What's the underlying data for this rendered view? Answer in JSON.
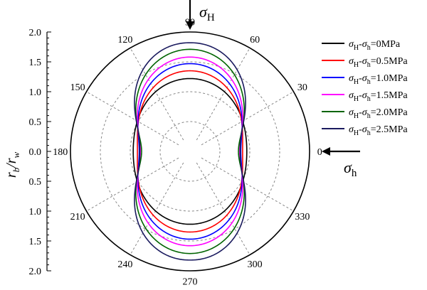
{
  "chart_data": {
    "type": "polar-line",
    "radial_axis": {
      "label_main": "r",
      "label_sub1": "b",
      "label_sep": "/r",
      "label_sub2": "w",
      "range": [
        0,
        2.0
      ],
      "ticks": [
        "2.0",
        "1.5",
        "1.0",
        "0.5",
        "0.0",
        "0.5",
        "1.0",
        "1.5",
        "2.0"
      ],
      "tick_values": [
        2.0,
        1.5,
        1.0,
        0.5,
        0.0,
        0.5,
        1.0,
        1.5,
        2.0
      ],
      "minor_step": 0.1
    },
    "angular_axis": {
      "ticks": [
        "0",
        "30",
        "60",
        "90",
        "120",
        "150",
        "180",
        "210",
        "240",
        "270",
        "300",
        "330"
      ],
      "tick_values_deg": [
        0,
        30,
        60,
        90,
        120,
        150,
        180,
        210,
        240,
        270,
        300,
        330
      ]
    },
    "grid_radii": [
      0.5,
      1.0,
      1.5
    ],
    "grid": true,
    "legend_position": "right",
    "annotations": {
      "sigma_H": {
        "symbol": "σ",
        "sub": "H"
      },
      "sigma_h": {
        "symbol": "σ",
        "sub": "h"
      }
    },
    "series": [
      {
        "name": "σH-σh=0MPa",
        "name_parts": [
          "σ",
          "H",
          "-σ",
          "h",
          "=0MPa"
        ],
        "color": "#000000",
        "peak_90": 1.22,
        "at_0": 0.95,
        "cusp": false
      },
      {
        "name": "σH-σh=0.5MPa",
        "name_parts": [
          "σ",
          "H",
          "-σ",
          "h",
          "=0.5MPa"
        ],
        "color": "#ff0000",
        "peak_90": 1.35,
        "at_0": 0.88,
        "cusp": false
      },
      {
        "name": "σH-σh=1.0MPa",
        "name_parts": [
          "σ",
          "H",
          "-σ",
          "h",
          "=1.0MPa"
        ],
        "color": "#0000ff",
        "peak_90": 1.47,
        "at_0": 0.85,
        "cusp": false
      },
      {
        "name": "σH-σh=1.5MPa",
        "name_parts": [
          "σ",
          "H",
          "-σ",
          "h",
          "=1.5MPa"
        ],
        "color": "#ff00ff",
        "peak_90": 1.58,
        "at_0": 0.83,
        "cusp": false
      },
      {
        "name": "σH-σh=2.0MPa",
        "name_parts": [
          "σ",
          "H",
          "-σ",
          "h",
          "=2.0MPa"
        ],
        "color": "#006400",
        "peak_90": 1.71,
        "at_0": 0.81,
        "cusp": false
      },
      {
        "name": "σH-σh=2.5MPa",
        "name_parts": [
          "σ",
          "H",
          "-σ",
          "h",
          "=2.5MPa"
        ],
        "color": "#1a1a5e",
        "peak_90": 1.82,
        "at_0": 0.74,
        "cusp": true
      }
    ]
  }
}
